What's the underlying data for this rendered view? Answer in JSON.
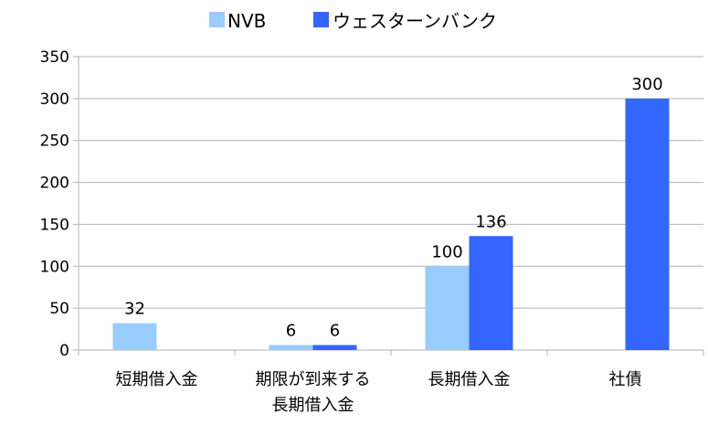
{
  "chart_data": {
    "type": "bar",
    "categories": [
      "短期借入金",
      "期限が到来する\n長期借入金",
      "長期借入金",
      "社債"
    ],
    "series": [
      {
        "name": "NVB",
        "values": [
          32,
          6,
          100,
          null
        ],
        "labels": [
          "32",
          "6",
          "100",
          ""
        ],
        "color": "#99ccff"
      },
      {
        "name": "ウェスターンバンク",
        "values": [
          null,
          6,
          136,
          300
        ],
        "labels": [
          "",
          "6",
          "136",
          "300"
        ],
        "color": "#3366ff"
      }
    ],
    "ylim": [
      0,
      350
    ],
    "yticks": [
      0,
      50,
      100,
      150,
      200,
      250,
      300,
      350
    ],
    "grid": true,
    "legend_position": "top"
  }
}
